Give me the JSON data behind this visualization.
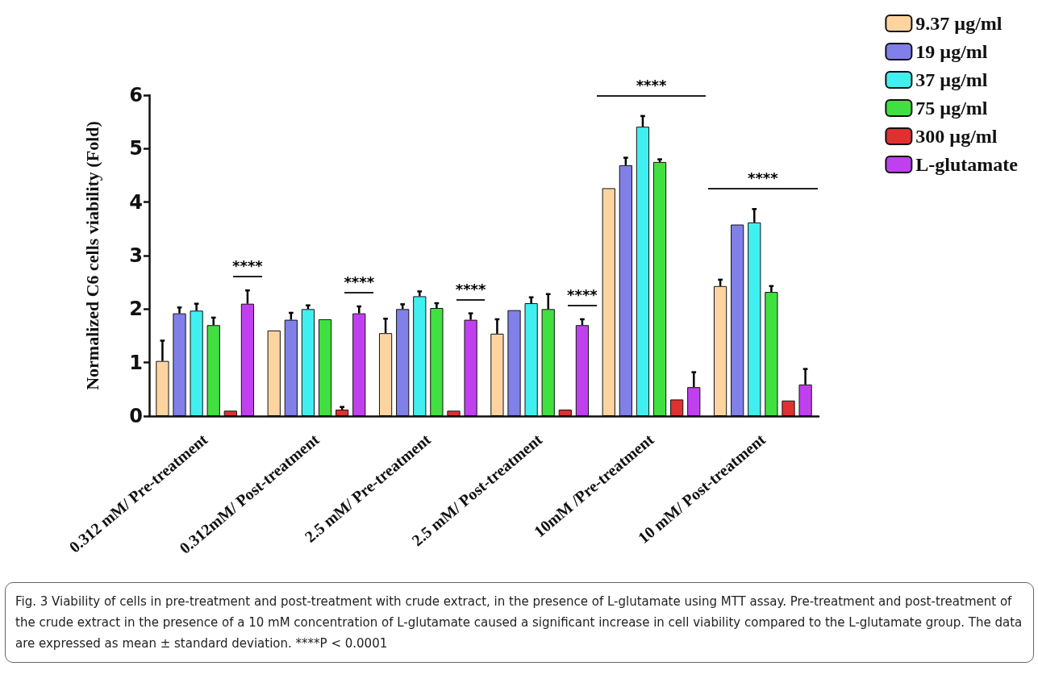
{
  "chart_data": {
    "type": "bar",
    "ylabel": "Normalized C6 cells viability (Fold)",
    "categories": [
      "0.312 mM/ Pre-treatment",
      "0.312mM/ Post-treatment",
      "2.5 mM/ Pre-treatment",
      "2.5 mM/ Post-treatment",
      "10mM /Pre-treatment",
      "10 mM/ Post-treatment"
    ],
    "series": [
      {
        "name": "9.37 µg/ml",
        "color": "#fdd4a0",
        "values": [
          1.03,
          1.6,
          1.55,
          1.54,
          4.26,
          2.43
        ],
        "errors": [
          0.38,
          null,
          0.27,
          0.27,
          null,
          0.12
        ]
      },
      {
        "name": "19 µg/ml",
        "color": "#8080e8",
        "values": [
          1.92,
          1.8,
          2.0,
          1.98,
          4.69,
          3.58
        ],
        "errors": [
          0.11,
          0.13,
          0.09,
          null,
          0.14,
          null
        ]
      },
      {
        "name": "37 µg/ml",
        "color": "#40f0f0",
        "values": [
          1.97,
          2.0,
          2.24,
          2.11,
          5.41,
          3.62
        ],
        "errors": [
          0.13,
          0.07,
          0.09,
          0.11,
          0.2,
          0.25
        ]
      },
      {
        "name": "75 µg/ml",
        "color": "#40e040",
        "values": [
          1.7,
          1.81,
          2.02,
          2.0,
          4.75,
          2.32
        ],
        "errors": [
          0.14,
          null,
          0.09,
          0.28,
          0.05,
          0.11
        ]
      },
      {
        "name": "300 µg/ml",
        "color": "#e03030",
        "values": [
          0.1,
          0.12,
          0.1,
          0.12,
          0.31,
          0.29
        ],
        "errors": [
          null,
          0.05,
          null,
          null,
          null,
          null
        ]
      },
      {
        "name": "L-glutamate",
        "color": "#c040f0",
        "values": [
          2.1,
          1.92,
          1.8,
          1.7,
          0.54,
          0.59
        ],
        "errors": [
          0.25,
          0.13,
          0.12,
          0.11,
          0.28,
          0.29
        ]
      }
    ],
    "ylim": [
      0,
      6
    ],
    "yticks": [
      0,
      1,
      2,
      3,
      4,
      5,
      6
    ],
    "grid": false,
    "legend": "top right",
    "annotations": [
      "****",
      "****",
      "****",
      "****",
      "****",
      "****",
      "Fig. 3  Viability of cells in pre-treatment and post-treatment with crude extract, in the presence of L-glutamate using MTT assay. Pre-treatment and post-treatment of the crude extract in the presence of a 10 mM concentration of L-glutamate caused a significant increase in cell viability compared to the L-glutamate group. The data are expressed as mean ± standard deviation. ****P < 0.0001"
    ]
  }
}
